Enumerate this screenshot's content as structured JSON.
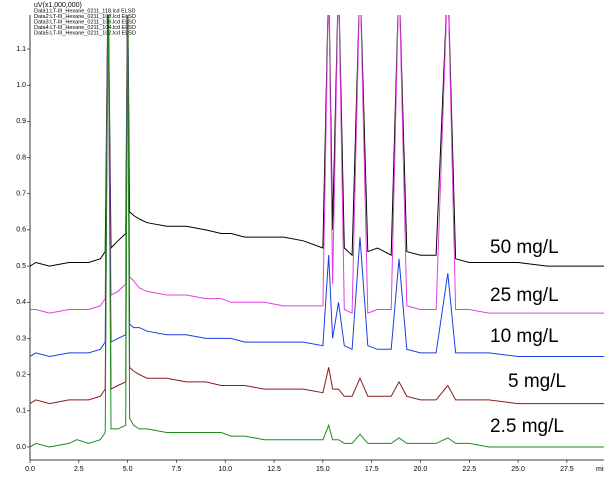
{
  "chart_data": {
    "type": "line",
    "y_label": "uV(x1,000,000)",
    "x_label": "min",
    "x": [
      0,
      0.3,
      1,
      2,
      2.4,
      3,
      3.6,
      3.85,
      4.0,
      4.15,
      4.5,
      4.9,
      5.0,
      5.1,
      5.3,
      5.6,
      6,
      7,
      8,
      9,
      9.8,
      10.3,
      11,
      12,
      13,
      14,
      15,
      15.3,
      15.5,
      15.8,
      16.1,
      16.5,
      16.9,
      17.3,
      17.8,
      18.5,
      18.9,
      19.3,
      20,
      20.8,
      21.4,
      21.8,
      22.5,
      23.5,
      25,
      26.5,
      28,
      29.4
    ],
    "series": [
      {
        "name": "Data1:LT-III_Hexane_0211_118.lcd ELSD",
        "color": "#000000",
        "values": [
          0.5,
          0.51,
          0.5,
          0.51,
          0.51,
          0.51,
          0.52,
          0.54,
          1.3,
          0.55,
          0.57,
          0.59,
          1.3,
          0.65,
          0.64,
          0.63,
          0.62,
          0.61,
          0.61,
          0.6,
          0.59,
          0.59,
          0.58,
          0.58,
          0.58,
          0.57,
          0.55,
          1.3,
          0.6,
          1.3,
          0.55,
          0.53,
          1.3,
          0.54,
          0.55,
          0.53,
          1.3,
          0.54,
          0.53,
          0.53,
          1.3,
          0.52,
          0.51,
          0.51,
          0.51,
          0.5,
          0.5,
          0.5
        ]
      },
      {
        "name": "Data2:LT-III_Hexane_0211_108.lcd ELSD",
        "color": "#e040e0",
        "values": [
          0.38,
          0.38,
          0.37,
          0.38,
          0.38,
          0.38,
          0.39,
          0.41,
          1.3,
          0.42,
          0.43,
          0.45,
          1.3,
          0.47,
          0.46,
          0.44,
          0.43,
          0.42,
          0.42,
          0.41,
          0.41,
          0.4,
          0.4,
          0.4,
          0.39,
          0.39,
          0.39,
          1.3,
          0.45,
          1.3,
          0.38,
          0.37,
          1.3,
          0.37,
          0.38,
          0.38,
          1.3,
          0.39,
          0.38,
          0.38,
          1.3,
          0.38,
          0.38,
          0.37,
          0.37,
          0.37,
          0.37,
          0.37
        ]
      },
      {
        "name": "Data3:LT-III_Hexane_0211_106.lcd ELSD",
        "color": "#1a3ee0",
        "values": [
          0.25,
          0.26,
          0.25,
          0.26,
          0.26,
          0.26,
          0.27,
          0.29,
          1.3,
          0.29,
          0.3,
          0.31,
          1.3,
          0.34,
          0.33,
          0.33,
          0.32,
          0.31,
          0.31,
          0.3,
          0.3,
          0.3,
          0.29,
          0.29,
          0.29,
          0.29,
          0.28,
          0.53,
          0.3,
          0.4,
          0.28,
          0.27,
          0.58,
          0.28,
          0.27,
          0.27,
          0.52,
          0.27,
          0.26,
          0.26,
          0.48,
          0.26,
          0.26,
          0.26,
          0.25,
          0.25,
          0.25,
          0.25
        ]
      },
      {
        "name": "Data4:LT-III_Hexane_0211_104.lcd ELSD",
        "color": "#8b1a1a",
        "values": [
          0.12,
          0.13,
          0.12,
          0.13,
          0.13,
          0.13,
          0.14,
          0.16,
          1.3,
          0.16,
          0.17,
          0.18,
          1.3,
          0.22,
          0.21,
          0.2,
          0.19,
          0.19,
          0.18,
          0.18,
          0.17,
          0.17,
          0.17,
          0.16,
          0.16,
          0.16,
          0.15,
          0.22,
          0.16,
          0.16,
          0.14,
          0.14,
          0.19,
          0.14,
          0.14,
          0.14,
          0.18,
          0.14,
          0.13,
          0.13,
          0.17,
          0.13,
          0.13,
          0.13,
          0.12,
          0.12,
          0.12,
          0.12
        ]
      },
      {
        "name": "Data5:LT-III_Hexane_0211_102.lcd ELSD",
        "color": "#1e8a1e",
        "values": [
          0.0,
          0.01,
          0.0,
          0.01,
          0.02,
          0.01,
          0.02,
          0.04,
          1.3,
          0.05,
          0.05,
          0.06,
          1.3,
          0.08,
          0.06,
          0.05,
          0.05,
          0.04,
          0.04,
          0.04,
          0.04,
          0.03,
          0.03,
          0.02,
          0.02,
          0.02,
          0.02,
          0.06,
          0.02,
          0.02,
          0.01,
          0.01,
          0.035,
          0.01,
          0.01,
          0.01,
          0.025,
          0.01,
          0.01,
          0.01,
          0.025,
          0.01,
          0.01,
          0.0,
          0.0,
          0.0,
          0.0,
          0.0
        ]
      }
    ],
    "annotations": [
      {
        "text": "50 mg/L",
        "color": "#000000"
      },
      {
        "text": "25 mg/L",
        "color": "#e040e0"
      },
      {
        "text": "10 mg/L",
        "color": "#1a6ee0"
      },
      {
        "text": "5 mg/L",
        "color": "#3a5a2a"
      },
      {
        "text": "2.5 mg/L",
        "color": "#2a9a2a"
      }
    ],
    "xlim": [
      0,
      29.4
    ],
    "ylim": [
      -0.036,
      1.194
    ],
    "xticks": [
      {
        "value": 0,
        "label": "0.0"
      },
      2.5,
      {
        "value": 5,
        "label": "5.0"
      },
      7.5,
      {
        "value": 10,
        "label": "10.0"
      },
      12.5,
      {
        "value": 15,
        "label": "15.0"
      },
      17.5,
      {
        "value": 20,
        "label": "20.0"
      },
      22.5,
      {
        "value": 25,
        "label": "25.0"
      },
      27.5
    ],
    "yticks": [
      {
        "value": 0,
        "label": "0.0"
      },
      0.1,
      0.2,
      0.3,
      0.4,
      0.5,
      0.6,
      0.7,
      0.8,
      0.9,
      {
        "value": 1,
        "label": "1.0"
      },
      1.1
    ]
  }
}
